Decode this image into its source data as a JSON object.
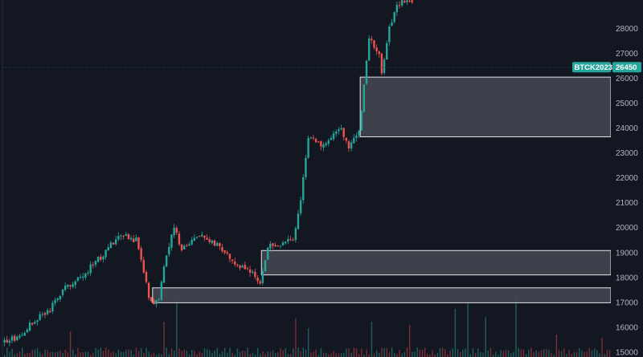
{
  "chart_data": {
    "type": "candlestick",
    "symbol": "BTCK2023",
    "last_price": "26450",
    "last_price_value": 26450,
    "ylim": [
      14800,
      29150
    ],
    "x_count": 240,
    "y_ticks": [
      {
        "label": "28000",
        "value": 28000
      },
      {
        "label": "27000",
        "value": 27000
      },
      {
        "label": "26000",
        "value": 26000
      },
      {
        "label": "25000",
        "value": 25000
      },
      {
        "label": "24000",
        "value": 24000
      },
      {
        "label": "23000",
        "value": 23000
      },
      {
        "label": "22000",
        "value": 22000
      },
      {
        "label": "21000",
        "value": 21000
      },
      {
        "label": "20000",
        "value": 20000
      },
      {
        "label": "19000",
        "value": 19000
      },
      {
        "label": "18000",
        "value": 18000
      },
      {
        "label": "17000",
        "value": 17000
      },
      {
        "label": "16000",
        "value": 16000
      },
      {
        "label": "15000",
        "value": 15000
      }
    ],
    "zones": [
      {
        "x_start": 141,
        "top": 26050,
        "bottom": 23650
      },
      {
        "x_start": 102,
        "top": 19080,
        "bottom": 18100
      },
      {
        "x_start": 59,
        "top": 17580,
        "bottom": 16980
      }
    ],
    "price_path": [
      [
        0,
        15400
      ],
      [
        6,
        15650
      ],
      [
        12,
        16300
      ],
      [
        18,
        16700
      ],
      [
        24,
        17600
      ],
      [
        30,
        18000
      ],
      [
        36,
        18600
      ],
      [
        42,
        19300
      ],
      [
        47,
        19700
      ],
      [
        52,
        19500
      ],
      [
        55,
        18200
      ],
      [
        57,
        17300
      ],
      [
        59,
        16950
      ],
      [
        61,
        17200
      ],
      [
        64,
        19000
      ],
      [
        67,
        19900
      ],
      [
        70,
        19200
      ],
      [
        74,
        19500
      ],
      [
        78,
        19700
      ],
      [
        82,
        19400
      ],
      [
        86,
        19100
      ],
      [
        90,
        18700
      ],
      [
        94,
        18400
      ],
      [
        98,
        18100
      ],
      [
        101,
        17650
      ],
      [
        104,
        19200
      ],
      [
        110,
        19400
      ],
      [
        114,
        19550
      ],
      [
        117,
        21000
      ],
      [
        120,
        23700
      ],
      [
        125,
        23300
      ],
      [
        129,
        23600
      ],
      [
        133,
        24000
      ],
      [
        136,
        23300
      ],
      [
        140,
        23800
      ],
      [
        144,
        27600
      ],
      [
        148,
        26900
      ],
      [
        149,
        26300
      ],
      [
        152,
        28000
      ],
      [
        155,
        29000
      ],
      [
        158,
        29050
      ],
      [
        161,
        29100
      ]
    ],
    "volume_range": [
      0,
      100
    ],
    "volume_spikes": [
      {
        "x": 26,
        "value": 40
      },
      {
        "x": 63,
        "value": 55
      },
      {
        "x": 68,
        "value": 90
      },
      {
        "x": 115,
        "value": 60
      },
      {
        "x": 120,
        "value": 45
      },
      {
        "x": 145,
        "value": 55
      },
      {
        "x": 160,
        "value": 50
      },
      {
        "x": 178,
        "value": 75
      },
      {
        "x": 183,
        "value": 85
      },
      {
        "x": 190,
        "value": 62
      },
      {
        "x": 202,
        "value": 95
      },
      {
        "x": 218,
        "value": 35
      },
      {
        "x": 236,
        "value": 30
      }
    ],
    "colors": {
      "up": "#26a69a",
      "down": "#ef5350",
      "up_volume": "#1f5f5b",
      "down_volume": "#7a2e36",
      "zone_fill": "#434651",
      "zone_stroke": "#e6e6e6",
      "price_line": "#2b4a4e",
      "price_tag": "#26a69a",
      "background": "#131722",
      "axis_text": "#b2b5be"
    }
  }
}
